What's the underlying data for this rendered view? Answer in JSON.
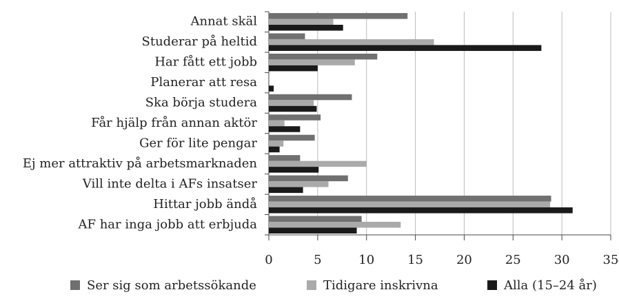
{
  "chart_data": {
    "type": "hbar",
    "categories": [
      "Annat skäl",
      "Studerar på heltid",
      "Har fått ett jobb",
      "Planerar att  resa",
      "Ska börja studera",
      "Får hjälp från annan aktör",
      "Ger för lite pengar",
      "Ej mer attraktiv på arbetsmarknaden",
      "Vill inte delta i AFs insatser",
      "Hittar jobb ändå",
      "AF har inga jobb att erbjuda"
    ],
    "series": [
      {
        "name": "Ser sig som arbetssökande",
        "color": "#707070",
        "values": [
          14.2,
          3.7,
          11.1,
          0,
          8.5,
          5.3,
          4.7,
          3.2,
          8.1,
          28.9,
          9.5
        ]
      },
      {
        "name": "Tidigare inskrivna",
        "color": "#aaaaaa",
        "values": [
          6.6,
          16.9,
          8.8,
          0,
          4.6,
          1.6,
          1.5,
          10.0,
          6.1,
          28.8,
          13.5
        ]
      },
      {
        "name": "Alla (15–24 år)",
        "color": "#1a1a1a",
        "values": [
          7.6,
          27.9,
          5.0,
          0.5,
          4.9,
          3.2,
          1.1,
          5.1,
          3.5,
          31.1,
          9.0
        ]
      }
    ],
    "xlim": [
      0,
      35
    ],
    "xticks": [
      0,
      5,
      10,
      15,
      20,
      25,
      30,
      35
    ],
    "grid": true,
    "legend": "bottom"
  }
}
